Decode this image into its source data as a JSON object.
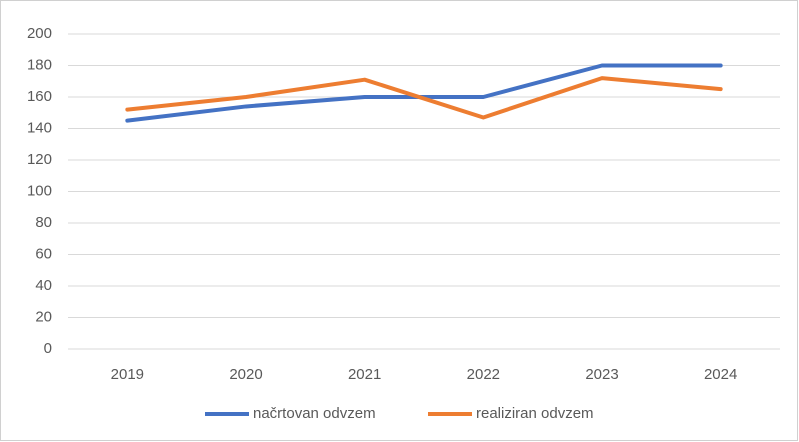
{
  "chart_data": {
    "type": "line",
    "categories": [
      "2019",
      "2020",
      "2021",
      "2022",
      "2023",
      "2024"
    ],
    "series": [
      {
        "name": "načrtovan odvzem",
        "color": "#4472c4",
        "values": [
          145,
          154,
          160,
          160,
          180,
          180
        ]
      },
      {
        "name": "realiziran odvzem",
        "color": "#ed7d31",
        "values": [
          152,
          160,
          171,
          147,
          172,
          165
        ]
      }
    ],
    "ylim": [
      0,
      200
    ],
    "yticks": [
      0,
      20,
      40,
      60,
      80,
      100,
      120,
      140,
      160,
      180,
      200
    ],
    "grid": true,
    "legend": "bottom"
  }
}
